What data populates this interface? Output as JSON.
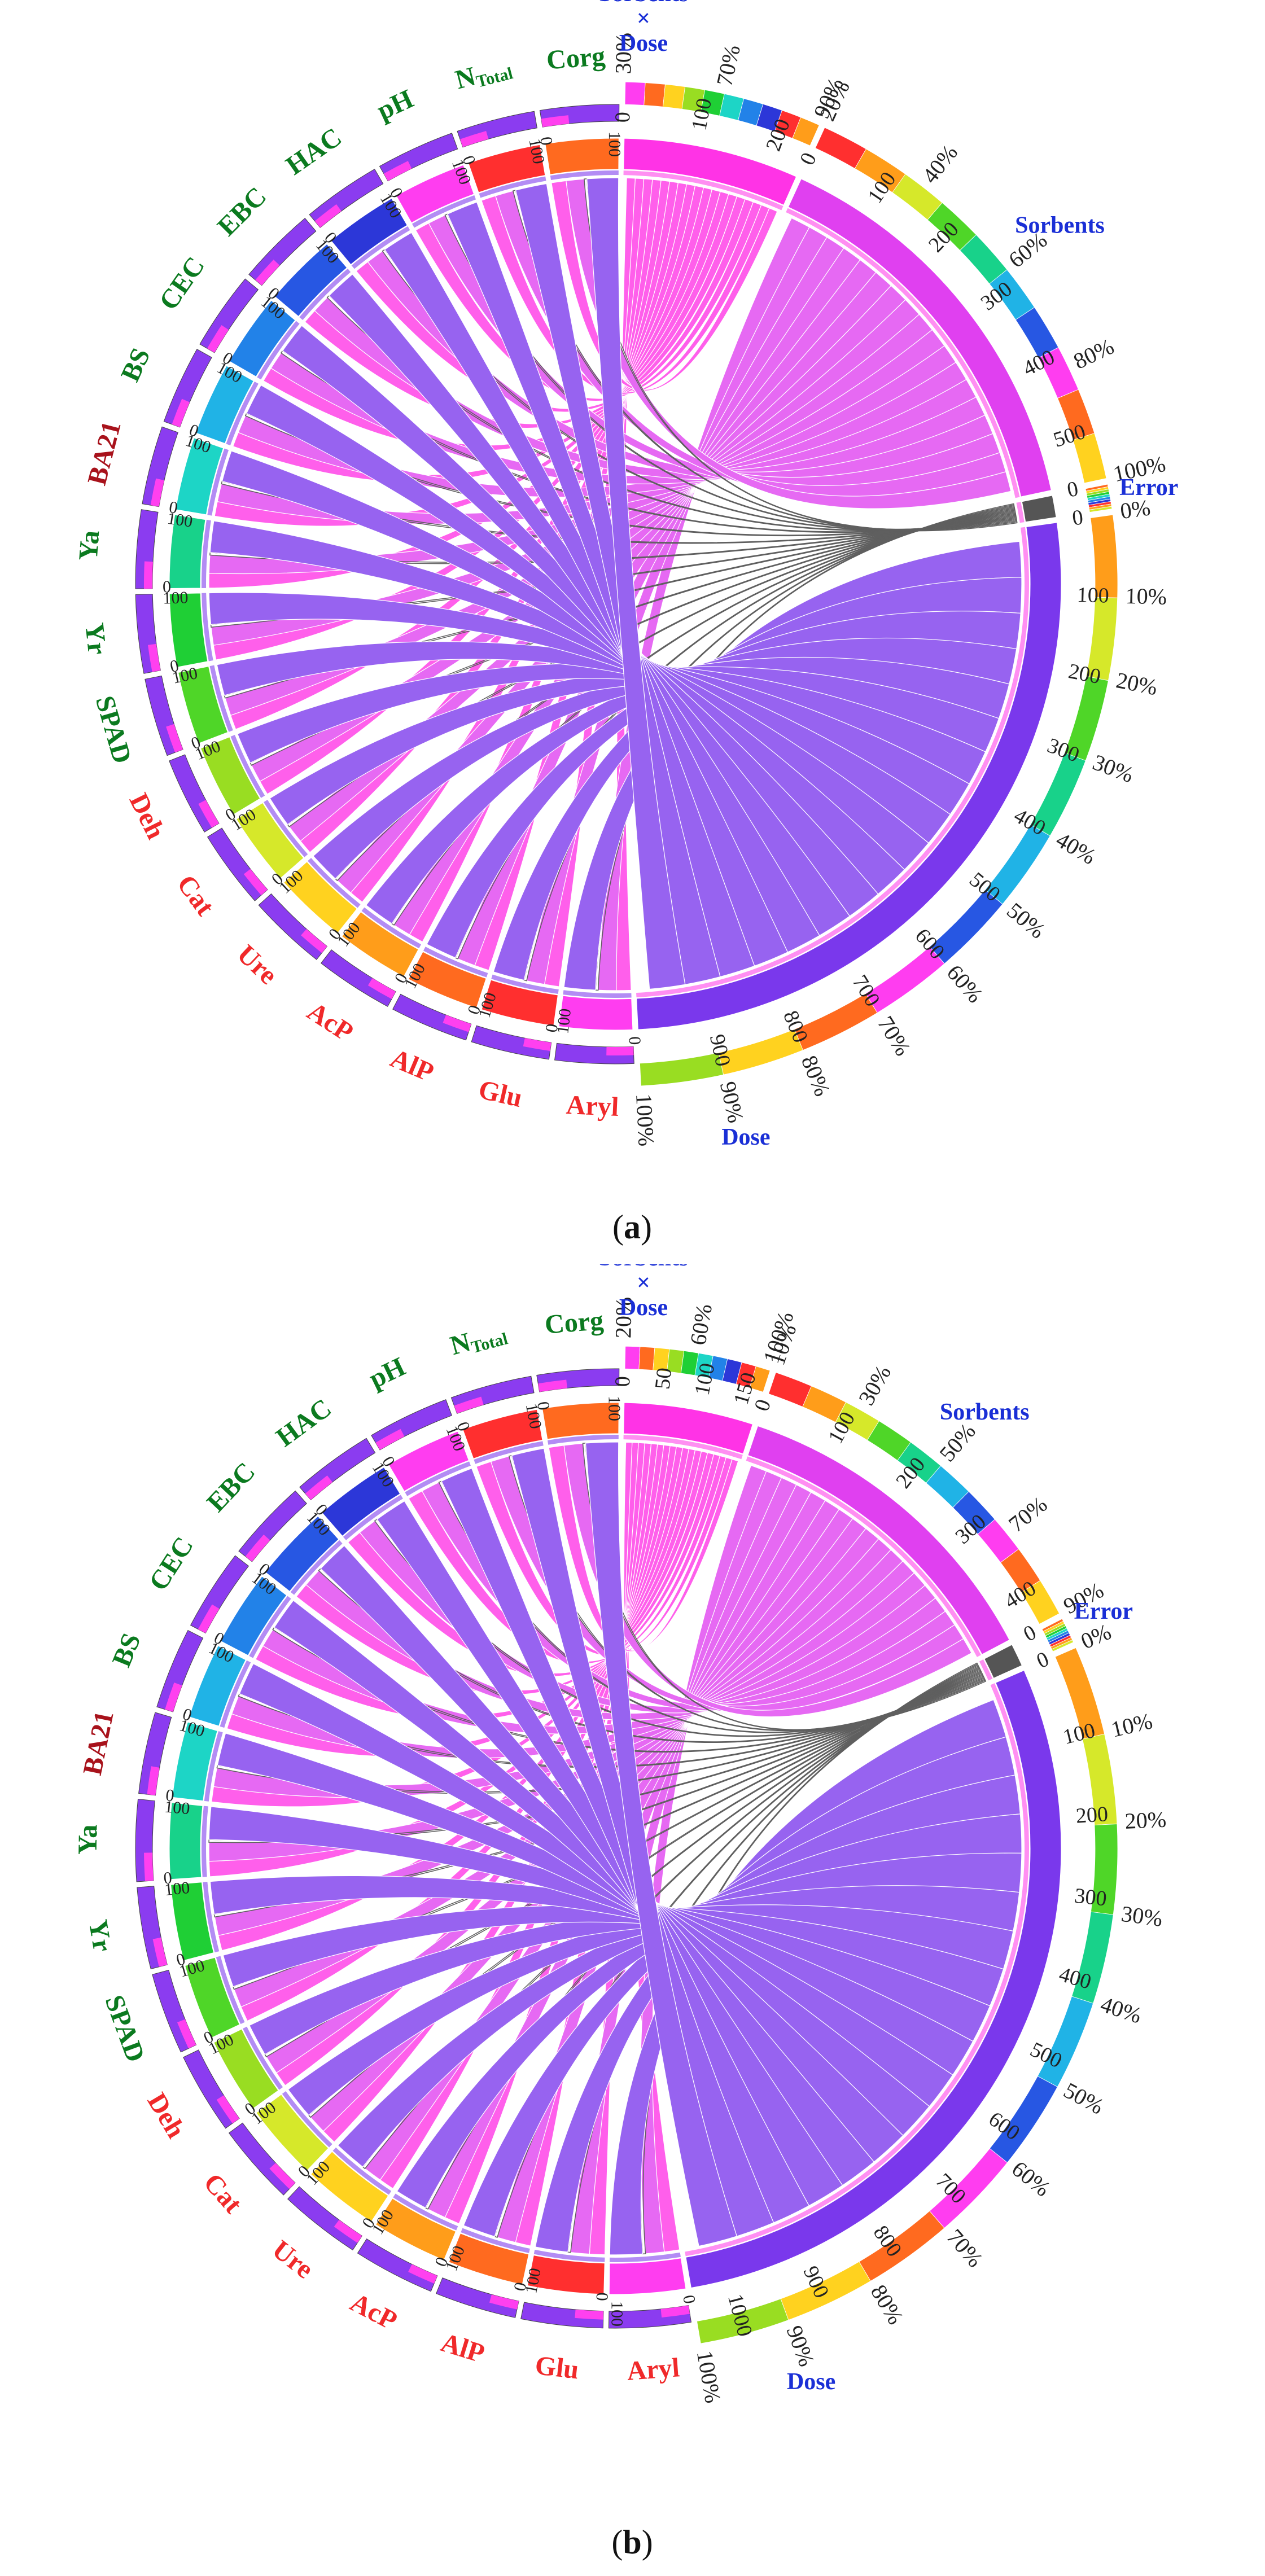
{
  "chart_data": [
    {
      "panel_label": "a",
      "type": "chord",
      "groups": [
        {
          "name": "Sorbents × Dose",
          "lines": [
            "Sorbents",
            "×",
            "Dose"
          ],
          "class": "factor",
          "total": 240,
          "ticks": [
            0,
            100,
            200
          ],
          "pct_ticks": [
            "30%",
            "70%",
            "90%"
          ]
        },
        {
          "name": "Sorbents",
          "lines": [
            "Sorbents"
          ],
          "class": "factor",
          "total": 560,
          "ticks": [
            0,
            100,
            200,
            300,
            400,
            500
          ],
          "pct_ticks": [
            "20%",
            "40%",
            "60%",
            "80%",
            "100%"
          ]
        },
        {
          "name": "Error",
          "lines": [
            "Error"
          ],
          "class": "factor",
          "total": 30,
          "ticks": [
            0
          ],
          "pct_ticks": []
        },
        {
          "name": "Dose",
          "lines": [
            "Dose"
          ],
          "class": "factor",
          "total": 1000,
          "ticks": [
            0,
            100,
            200,
            300,
            400,
            500,
            600,
            700,
            800,
            900
          ],
          "pct_ticks": [
            "0%",
            "10%",
            "20%",
            "30%",
            "40%",
            "50%",
            "60%",
            "70%",
            "80%",
            "90%",
            "100%"
          ]
        },
        {
          "name": "Aryl",
          "class": "enzyme",
          "total": 100,
          "ticks": [
            0,
            100
          ]
        },
        {
          "name": "Glu",
          "class": "enzyme",
          "total": 100,
          "ticks": [
            0,
            100
          ]
        },
        {
          "name": "AlP",
          "class": "enzyme",
          "total": 100,
          "ticks": [
            0,
            100
          ]
        },
        {
          "name": "AcP",
          "class": "enzyme",
          "total": 100,
          "ticks": [
            0,
            100
          ]
        },
        {
          "name": "Ure",
          "class": "enzyme",
          "total": 100,
          "ticks": [
            0,
            100
          ]
        },
        {
          "name": "Cat",
          "class": "enzyme",
          "total": 100,
          "ticks": [
            0,
            100
          ]
        },
        {
          "name": "Deh",
          "class": "enzyme",
          "total": 100,
          "ticks": [
            0,
            100
          ]
        },
        {
          "name": "SPAD",
          "class": "plant",
          "total": 100,
          "ticks": [
            0,
            100
          ]
        },
        {
          "name": "Yr",
          "class": "plant",
          "total": 100,
          "ticks": [
            0,
            100
          ]
        },
        {
          "name": "Ya",
          "class": "plant",
          "total": 100,
          "ticks": [
            0,
            100
          ]
        },
        {
          "name": "BA21",
          "class": "index",
          "total": 100,
          "ticks": [
            0,
            100
          ]
        },
        {
          "name": "BS",
          "class": "plant",
          "total": 100,
          "ticks": [
            0,
            100
          ]
        },
        {
          "name": "CEC",
          "class": "plant",
          "total": 100,
          "ticks": [
            0,
            100
          ]
        },
        {
          "name": "EBC",
          "class": "plant",
          "total": 100,
          "ticks": [
            0,
            100
          ]
        },
        {
          "name": "HAC",
          "class": "plant",
          "total": 100,
          "ticks": [
            0,
            100
          ]
        },
        {
          "name": "pH",
          "class": "plant",
          "total": 100,
          "ticks": [
            0,
            100
          ]
        },
        {
          "name": "NTotal",
          "main": "N",
          "sub": "Total",
          "class": "plant",
          "total": 100,
          "ticks": [
            0,
            100
          ]
        },
        {
          "name": "Corg",
          "class": "plant",
          "total": 100,
          "ticks": [
            0,
            100
          ]
        }
      ]
    },
    {
      "panel_label": "b",
      "type": "chord",
      "groups": [
        {
          "name": "Sorbents × Dose",
          "lines": [
            "Sorbents",
            "×",
            "Dose"
          ],
          "class": "factor",
          "total": 170,
          "ticks": [
            0,
            50,
            100,
            150
          ],
          "pct_ticks": [
            "20%",
            "60%",
            "100%"
          ]
        },
        {
          "name": "Sorbents",
          "lines": [
            "Sorbents"
          ],
          "class": "factor",
          "total": 440,
          "ticks": [
            0,
            100,
            200,
            300,
            400
          ],
          "pct_ticks": [
            "10%",
            "30%",
            "50%",
            "70%",
            "90%"
          ]
        },
        {
          "name": "Error",
          "lines": [
            "Error"
          ],
          "class": "factor",
          "total": 30,
          "ticks": [
            0
          ],
          "pct_ticks": []
        },
        {
          "name": "Dose",
          "lines": [
            "Dose"
          ],
          "class": "factor",
          "total": 1050,
          "ticks": [
            0,
            100,
            200,
            300,
            400,
            500,
            600,
            700,
            800,
            900,
            1000
          ],
          "pct_ticks": [
            "0%",
            "10%",
            "20%",
            "30%",
            "40%",
            "50%",
            "60%",
            "70%",
            "80%",
            "90%",
            "100%"
          ]
        },
        {
          "name": "Aryl",
          "class": "enzyme",
          "total": 100,
          "ticks": [
            0,
            100
          ]
        },
        {
          "name": "Glu",
          "class": "enzyme",
          "total": 100,
          "ticks": [
            0,
            100
          ]
        },
        {
          "name": "AlP",
          "class": "enzyme",
          "total": 100,
          "ticks": [
            0,
            100
          ]
        },
        {
          "name": "AcP",
          "class": "enzyme",
          "total": 100,
          "ticks": [
            0,
            100
          ]
        },
        {
          "name": "Ure",
          "class": "enzyme",
          "total": 100,
          "ticks": [
            0,
            100
          ]
        },
        {
          "name": "Cat",
          "class": "enzyme",
          "total": 100,
          "ticks": [
            0,
            100
          ]
        },
        {
          "name": "Deh",
          "class": "enzyme",
          "total": 100,
          "ticks": [
            0,
            100
          ]
        },
        {
          "name": "SPAD",
          "class": "plant",
          "total": 100,
          "ticks": [
            0,
            100
          ]
        },
        {
          "name": "Yr",
          "class": "plant",
          "total": 100,
          "ticks": [
            0,
            100
          ]
        },
        {
          "name": "Ya",
          "class": "plant",
          "total": 100,
          "ticks": [
            0,
            100
          ]
        },
        {
          "name": "BA21",
          "class": "index",
          "total": 100,
          "ticks": [
            0,
            100
          ]
        },
        {
          "name": "BS",
          "class": "plant",
          "total": 100,
          "ticks": [
            0,
            100
          ]
        },
        {
          "name": "CEC",
          "class": "plant",
          "total": 100,
          "ticks": [
            0,
            100
          ]
        },
        {
          "name": "EBC",
          "class": "plant",
          "total": 100,
          "ticks": [
            0,
            100
          ]
        },
        {
          "name": "HAC",
          "class": "plant",
          "total": 100,
          "ticks": [
            0,
            100
          ]
        },
        {
          "name": "pH",
          "class": "plant",
          "total": 100,
          "ticks": [
            0,
            100
          ]
        },
        {
          "name": "NTotal",
          "main": "N",
          "sub": "Total",
          "class": "plant",
          "total": 100,
          "ticks": [
            0,
            100
          ]
        },
        {
          "name": "Corg",
          "class": "plant",
          "total": 100,
          "ticks": [
            0,
            100
          ]
        }
      ]
    }
  ],
  "label_colors": {
    "factor": "#1a2fd6",
    "plant": "#0b7a1f",
    "enzyme": "#f0292a",
    "index": "#a8121b"
  },
  "ribbon_colors": {
    "Sorbents × Dose": "#ff33e6",
    "Sorbents": "#e040f0",
    "Dose": "#7a38ec",
    "Error": "#555555"
  },
  "arc_palette": [
    "#ff3df0",
    "#ff2f2f",
    "#ff6a1f",
    "#ff9d1a",
    "#ffd21f",
    "#d6e82a",
    "#99dd22",
    "#4fd628",
    "#1fcf35",
    "#18d28a",
    "#1dd5c6",
    "#20b3e6",
    "#2282e8",
    "#2757e3",
    "#2c37d8"
  ],
  "captions": {
    "a": "a",
    "b": "b"
  }
}
